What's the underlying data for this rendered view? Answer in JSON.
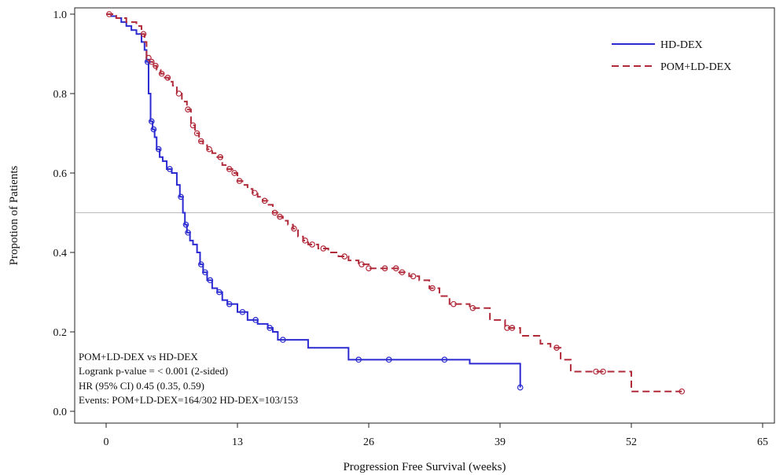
{
  "chart_data": {
    "type": "line",
    "chart_kind": "kaplan-meier step curve",
    "xlabel": "Progression Free Survival (weeks)",
    "ylabel": "Propotion of Patients",
    "xlim": [
      -3,
      65
    ],
    "ylim": [
      -0.02,
      1.02
    ],
    "xticks": [
      "0",
      "13",
      "26",
      "39",
      "65"
    ],
    "xtick_values": [
      0,
      13,
      26,
      39,
      65
    ],
    "extra_xtick": {
      "label": "52",
      "value": 52
    },
    "yticks": [
      "0.0",
      "0.2",
      "0.4",
      "0.6",
      "0.8",
      "1.0"
    ],
    "ytick_values": [
      0.0,
      0.2,
      0.4,
      0.6,
      0.8,
      1.0
    ],
    "reference_line": {
      "y": 0.5,
      "color": "#bbbbbb"
    },
    "grid": false,
    "legend_position": "top-right",
    "series": [
      {
        "name": "HD-DEX",
        "color": "#2b2bd1",
        "dash": "solid",
        "x": [
          0,
          0.5,
          1,
          1.5,
          2,
          2.5,
          3,
          3.5,
          3.8,
          4,
          4.2,
          4.4,
          4.6,
          4.8,
          5,
          5.3,
          5.6,
          6,
          6.5,
          7,
          7.3,
          7.6,
          7.8,
          8,
          8.3,
          8.6,
          9,
          9.3,
          9.6,
          10,
          10.5,
          11,
          11.5,
          12,
          13,
          14,
          15,
          16,
          16.5,
          17,
          20,
          24,
          36,
          41
        ],
        "y": [
          1.0,
          0.995,
          0.99,
          0.98,
          0.97,
          0.96,
          0.95,
          0.93,
          0.91,
          0.88,
          0.8,
          0.73,
          0.71,
          0.69,
          0.66,
          0.64,
          0.63,
          0.61,
          0.6,
          0.57,
          0.54,
          0.5,
          0.47,
          0.45,
          0.43,
          0.42,
          0.4,
          0.37,
          0.35,
          0.33,
          0.31,
          0.3,
          0.28,
          0.27,
          0.25,
          0.23,
          0.22,
          0.21,
          0.2,
          0.18,
          0.16,
          0.13,
          0.12,
          0.06
        ],
        "end": 41
      },
      {
        "name": "POM+LD-DEX",
        "color": "#b02a3a",
        "dash": "dashed",
        "x": [
          0,
          1,
          2,
          3,
          3.5,
          3.8,
          4,
          4.3,
          4.6,
          5,
          5.4,
          5.8,
          6.2,
          6.6,
          7,
          7.5,
          8,
          8.4,
          8.8,
          9.2,
          9.6,
          10,
          10.5,
          11,
          11.5,
          12,
          12.5,
          13,
          13.5,
          14,
          14.5,
          15,
          15.5,
          16,
          16.5,
          17,
          17.5,
          18,
          18.5,
          19,
          19.5,
          20,
          21,
          22,
          23,
          24,
          25,
          26,
          28,
          29,
          30,
          31,
          32,
          33,
          34,
          36,
          38,
          39.5,
          41,
          43,
          44,
          45,
          46,
          52,
          57
        ],
        "y": [
          1.0,
          0.99,
          0.98,
          0.97,
          0.95,
          0.93,
          0.89,
          0.88,
          0.87,
          0.86,
          0.85,
          0.84,
          0.83,
          0.82,
          0.8,
          0.78,
          0.76,
          0.72,
          0.7,
          0.68,
          0.67,
          0.66,
          0.65,
          0.64,
          0.62,
          0.61,
          0.6,
          0.58,
          0.57,
          0.56,
          0.55,
          0.54,
          0.53,
          0.52,
          0.5,
          0.49,
          0.48,
          0.47,
          0.46,
          0.44,
          0.43,
          0.42,
          0.41,
          0.4,
          0.39,
          0.38,
          0.37,
          0.36,
          0.36,
          0.35,
          0.34,
          0.33,
          0.31,
          0.29,
          0.27,
          0.26,
          0.23,
          0.21,
          0.19,
          0.17,
          0.16,
          0.13,
          0.1,
          0.05,
          0.05
        ],
        "end": 57
      }
    ],
    "censor_marks": [
      {
        "series": 0,
        "x": [
          4.1,
          4.5,
          4.7,
          5.2,
          6.3,
          7.4,
          7.9,
          8.1,
          9.4,
          9.8,
          10.3,
          11.2,
          12.2,
          13.5,
          14.8,
          16.2,
          17.5,
          25,
          28,
          33.5,
          41
        ]
      },
      {
        "series": 1,
        "x": [
          0.3,
          3.7,
          4.2,
          4.5,
          4.9,
          5.5,
          6.1,
          7.2,
          8.1,
          8.6,
          9,
          9.4,
          10.2,
          11.3,
          12.2,
          12.7,
          13.2,
          14.7,
          15.7,
          16.7,
          17.2,
          18.6,
          19.7,
          20.4,
          21.5,
          23.6,
          25.3,
          26,
          27.6,
          28.7,
          29.3,
          30.4,
          32.3,
          34.4,
          36.3,
          39.7,
          40.2,
          44.6,
          48.5,
          49.2,
          57
        ]
      }
    ],
    "legend": [
      "HD-DEX",
      "POM+LD-DEX"
    ],
    "annotation": [
      "POM+LD-DEX vs HD-DEX",
      "Logrank p-value = < 0.001 (2-sided)",
      "HR (95% CI) 0.45 (0.35, 0.59)",
      "Events: POM+LD-DEX=164/302 HD-DEX=103/153"
    ]
  }
}
